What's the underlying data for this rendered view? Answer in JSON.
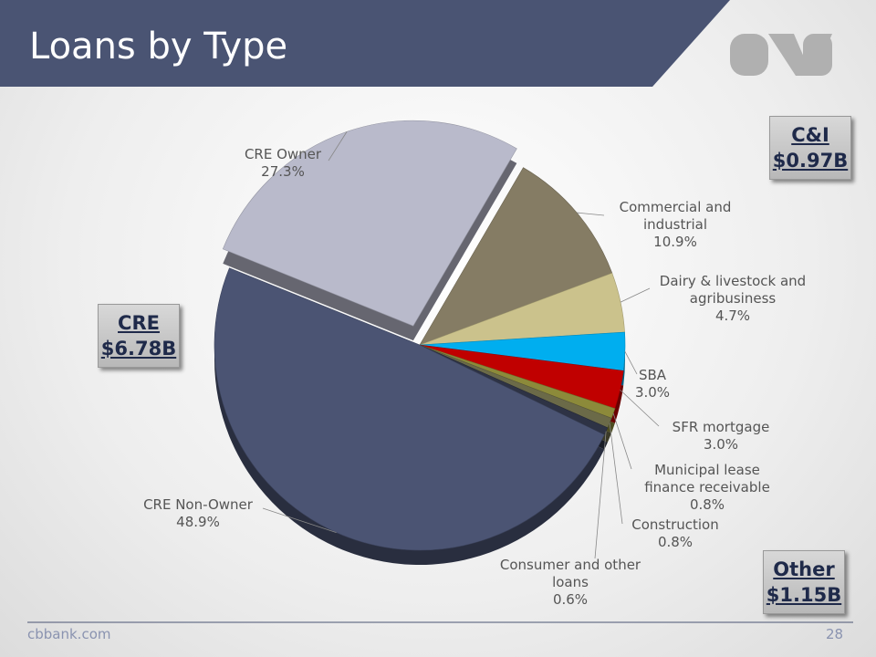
{
  "chart_data": {
    "type": "pie",
    "title": "Loans by Type",
    "categories": [
      "CRE Owner",
      "Commercial and industrial",
      "Dairy & livestock and agribusiness",
      "SBA",
      "SFR mortgage",
      "Municipal lease finance receivable",
      "Construction",
      "Consumer and other loans",
      "CRE Non-Owner"
    ],
    "values": [
      27.3,
      10.9,
      4.7,
      3.0,
      3.0,
      0.8,
      0.8,
      0.6,
      48.9
    ],
    "value_labels": [
      "27.3%",
      "10.9%",
      "4.7%",
      "3.0%",
      "3.0%",
      "0.8%",
      "0.8%",
      "0.6%",
      "48.9%"
    ],
    "colors": [
      "#b9bacb",
      "#857c64",
      "#cbc28c",
      "#00aeef",
      "#c00000",
      "#8c8a3a",
      "#6b6a48",
      "#2e3345",
      "#4b5473"
    ]
  },
  "segment_boxes": [
    {
      "label": "C&I",
      "amount": "$0.97B"
    },
    {
      "label": "CRE",
      "amount": "$6.78B"
    },
    {
      "label": "Other",
      "amount": "$1.15B"
    }
  ],
  "footer": {
    "site": "cbbank.com",
    "page": "28"
  }
}
